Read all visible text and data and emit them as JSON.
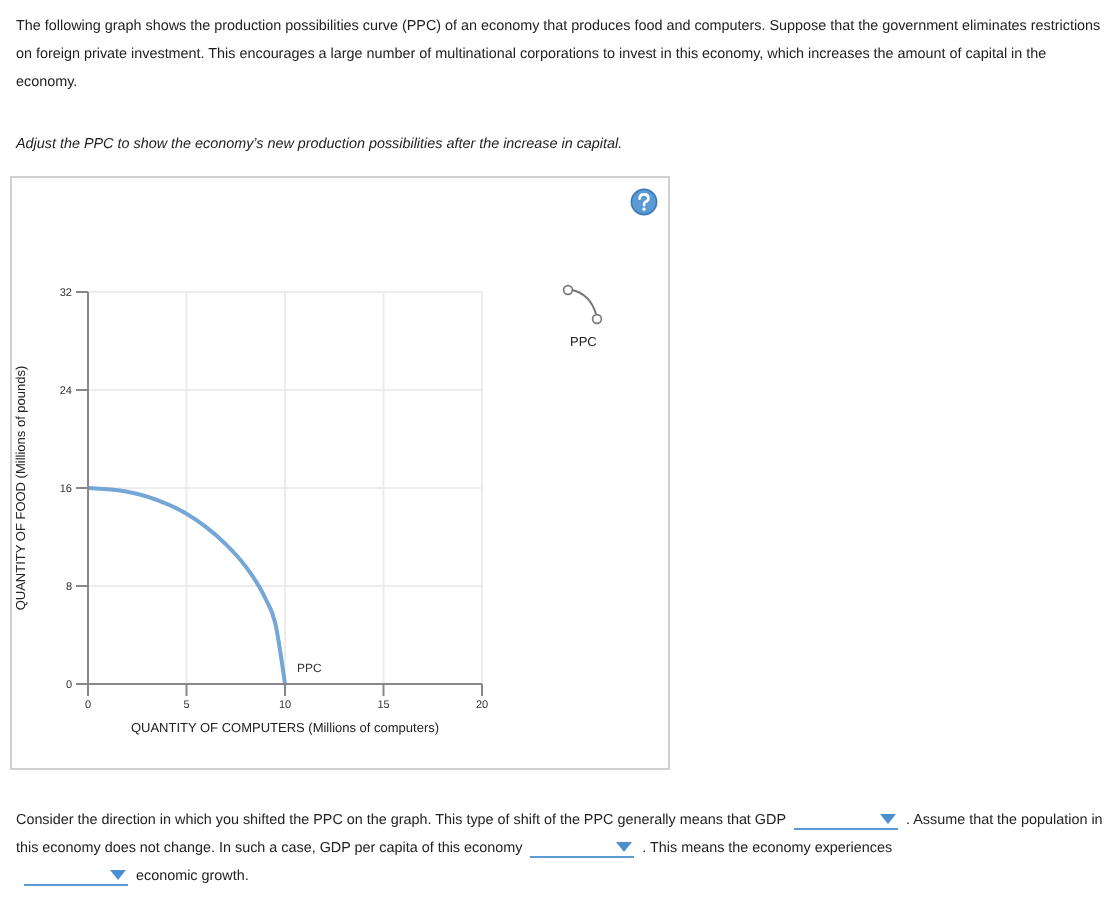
{
  "chart_data": {
    "type": "line",
    "title": "The following graph shows the production possibilities curve (PPC) of an economy that produces food and computers. Suppose that the government eliminates restrictions on foreign private investment. This encourages a large number of multinational corporations to invest in this economy, which increases the amount of capital in the economy.",
    "subtitle": "Adjust the PPC to show the economy’s new production possibilities after the increase in capital.",
    "xlabel": "QUANTITY OF COMPUTERS (Millions of computers)",
    "ylabel": "QUANTITY OF FOOD (Millions of pounds)",
    "annotations": [
      "Consider the direction in which you shifted the PPC on the graph. This type of shift of the PPC generally means that GDP",
      ". Assume that the population in this economy does not change. In such a case, GDP per capita of this economy",
      ". This means the economy experiences",
      "economic growth.",
      "PPC"
    ],
    "series": [
      {
        "name": "PPC",
        "color": "#74a6d6",
        "x": [
          0,
          2,
          4,
          5,
          6,
          7,
          8,
          9,
          9.5,
          10
        ],
        "values": [
          16,
          15.7,
          14.7,
          13.9,
          12.8,
          11.4,
          9.6,
          7,
          5,
          0
        ]
      }
    ],
    "xlim": [
      0,
      20
    ],
    "xticks": [
      0,
      5,
      10,
      15,
      20
    ],
    "ylim": [
      0,
      32
    ],
    "yticks": [
      0,
      8,
      16,
      24,
      32
    ],
    "grid": true,
    "marker": "none",
    "line_style": "solid"
  }
}
